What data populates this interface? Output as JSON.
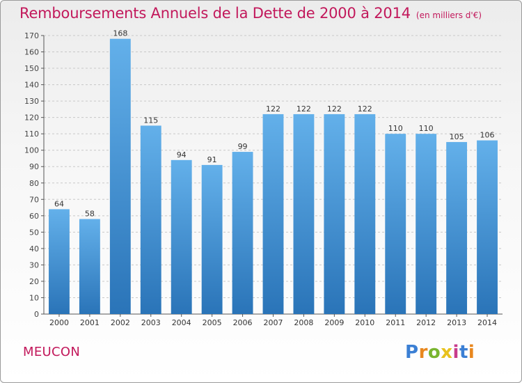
{
  "title": "Remboursements Annuels de la Dette de 2000 à 2014",
  "unit_note": "(en milliers d'€)",
  "commune": "MEUCON",
  "logo": {
    "text": "Proxiti",
    "colors": [
      "#3b7fd4",
      "#e8871e",
      "#79b530",
      "#e8c21e",
      "#c83c8c",
      "#3b7fd4",
      "#e8871e"
    ]
  },
  "colors": {
    "bar_top": "#63b0ea",
    "bar_bottom": "#2a74b8",
    "accent": "#c2185b",
    "grid": "#c8c8c8",
    "axis": "#555555"
  },
  "chart_data": {
    "type": "bar",
    "categories": [
      "2000",
      "2001",
      "2002",
      "2003",
      "2004",
      "2005",
      "2006",
      "2007",
      "2008",
      "2009",
      "2010",
      "2011",
      "2012",
      "2013",
      "2014"
    ],
    "values": [
      64,
      58,
      168,
      115,
      94,
      91,
      99,
      122,
      122,
      122,
      122,
      110,
      110,
      105,
      106
    ],
    "ylim": [
      0,
      170
    ],
    "ytick_step": 10,
    "grid": true,
    "data_labels": true,
    "title": "Remboursements Annuels de la Dette de 2000 à 2014",
    "xlabel": "",
    "ylabel": ""
  }
}
